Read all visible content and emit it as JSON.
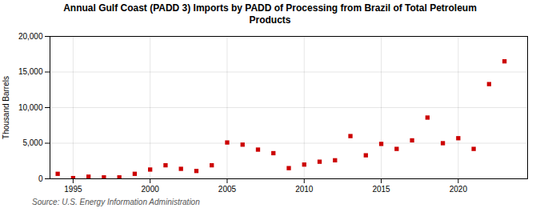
{
  "chart_data": {
    "type": "scatter",
    "title": "Annual Gulf Coast (PADD 3) Imports by PADD of Processing from Brazil of Total Petroleum\nProducts",
    "ylabel": "Thousand Barrels",
    "source": "Source: U.S. Energy Information Administration",
    "x": [
      1994,
      1995,
      1996,
      1997,
      1998,
      1999,
      2000,
      2001,
      2002,
      2003,
      2004,
      2005,
      2006,
      2007,
      2008,
      2009,
      2010,
      2011,
      2012,
      2013,
      2014,
      2015,
      2016,
      2017,
      2018,
      2019,
      2020,
      2021,
      2022,
      2023
    ],
    "values": [
      700,
      100,
      300,
      200,
      200,
      700,
      1300,
      1900,
      1400,
      1100,
      1900,
      5100,
      4800,
      4100,
      3600,
      1500,
      2000,
      2400,
      2600,
      6000,
      3300,
      4900,
      4200,
      5400,
      8600,
      5000,
      5700,
      4200,
      13300,
      16500
    ],
    "color": "#cc0000",
    "marker": "square",
    "xlim": [
      1993.5,
      2024.5
    ],
    "xticks": [
      1995,
      2000,
      2005,
      2010,
      2015,
      2020
    ],
    "ylim": [
      0,
      20000
    ],
    "yticks": [
      0,
      {
        "value": 5000,
        "label": "5,000"
      },
      {
        "value": 10000,
        "label": "10,000"
      },
      {
        "value": 15000,
        "label": "15,000"
      },
      {
        "value": 20000,
        "label": "20,000"
      }
    ],
    "grid": true
  }
}
